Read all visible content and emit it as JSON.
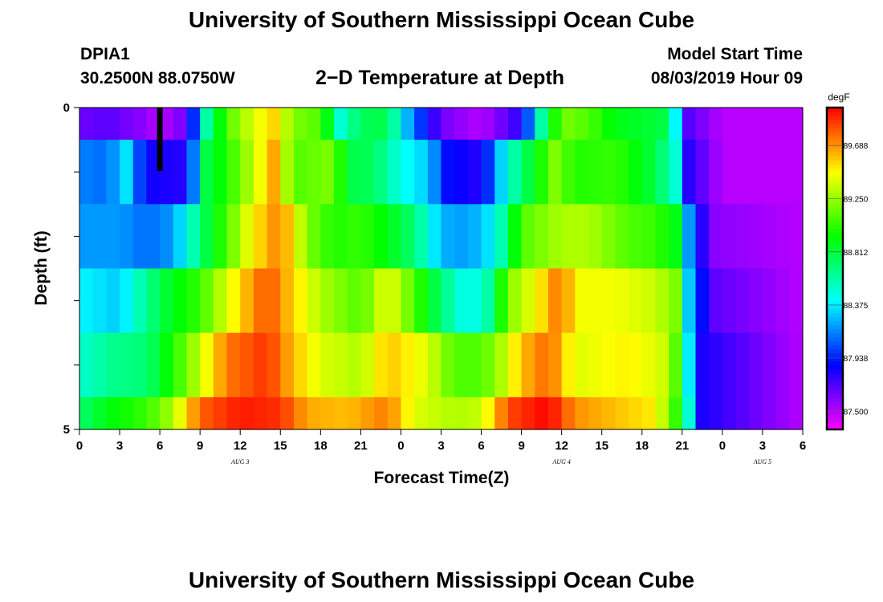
{
  "header": {
    "title": "University of Southern Mississippi Ocean Cube",
    "station_id": "DPIA1",
    "station_coords": "30.2500N 88.0750W",
    "plot_title": "2−D Temperature at Depth",
    "model_start_label": "Model Start Time",
    "model_start_value": "08/03/2019 Hour 09"
  },
  "footer": {
    "title": "University of Southern Mississippi Ocean Cube"
  },
  "chart_data": {
    "type": "heatmap",
    "xlabel": "Forecast Time(Z)",
    "ylabel": "Depth (ft)",
    "x_tick_labels": [
      "0",
      "3",
      "6",
      "9",
      "12",
      "15",
      "18",
      "21",
      "0",
      "3",
      "6",
      "9",
      "12",
      "15",
      "18",
      "21",
      "0",
      "3",
      "6"
    ],
    "x_date_labels": [
      {
        "label": "AUG 3",
        "tick_index": 4
      },
      {
        "label": "AUG 4",
        "tick_index": 12
      },
      {
        "label": "AUG 5",
        "tick_index": 17
      }
    ],
    "y_tick_labels": [
      "0",
      "5"
    ],
    "ylim": [
      0,
      5
    ],
    "y_minor_ticks": [
      0,
      1,
      2,
      3,
      4,
      5
    ],
    "colorbar": {
      "unit": "degF",
      "min": 87.35,
      "max": 90.0,
      "tick_values": [
        87.5,
        87.938,
        88.375,
        88.812,
        89.25,
        89.688
      ],
      "tick_labels": [
        "87.500",
        "87.938",
        "88.375",
        "88.812",
        "89.250",
        "89.688"
      ]
    },
    "time_marker_hour": 6,
    "depth_layers": [
      {
        "depth_range": [
          0,
          0.5
        ],
        "keyframes": [
          [
            0,
            87.65
          ],
          [
            2,
            87.7
          ],
          [
            4.5,
            87.6
          ],
          [
            6,
            87.5
          ],
          [
            8,
            87.65
          ],
          [
            9.5,
            88.6
          ],
          [
            11,
            89.1
          ],
          [
            13,
            89.4
          ],
          [
            14.5,
            89.55
          ],
          [
            16,
            89.2
          ],
          [
            18,
            89.1
          ],
          [
            19.5,
            88.5
          ],
          [
            21,
            88.75
          ],
          [
            23,
            88.8
          ],
          [
            24,
            88.4
          ],
          [
            25,
            88.1
          ],
          [
            27,
            87.65
          ],
          [
            30,
            87.5
          ],
          [
            33,
            87.8
          ],
          [
            34.5,
            88.6
          ],
          [
            36,
            89.2
          ],
          [
            38,
            89.1
          ],
          [
            40,
            88.9
          ],
          [
            42,
            88.85
          ],
          [
            43.5,
            88.8
          ],
          [
            44.5,
            88.4
          ],
          [
            45.5,
            87.7
          ],
          [
            48,
            87.5
          ],
          [
            54,
            87.5
          ]
        ]
      },
      {
        "depth_range": [
          0.5,
          1.5
        ],
        "keyframes": [
          [
            0,
            88.15
          ],
          [
            2,
            88.1
          ],
          [
            3.5,
            88.35
          ],
          [
            5,
            87.85
          ],
          [
            8,
            87.8
          ],
          [
            9.5,
            88.8
          ],
          [
            11,
            89.0
          ],
          [
            13,
            89.35
          ],
          [
            14.5,
            89.65
          ],
          [
            16,
            89.1
          ],
          [
            19,
            89.2
          ],
          [
            20,
            88.8
          ],
          [
            22,
            88.75
          ],
          [
            24,
            88.45
          ],
          [
            26,
            88.3
          ],
          [
            27.5,
            87.9
          ],
          [
            30,
            87.8
          ],
          [
            32,
            88.5
          ],
          [
            34,
            88.9
          ],
          [
            35.5,
            89.2
          ],
          [
            37,
            89.0
          ],
          [
            40,
            89.05
          ],
          [
            43,
            88.8
          ],
          [
            44.5,
            88.5
          ],
          [
            45.5,
            87.8
          ],
          [
            48,
            87.5
          ],
          [
            54,
            87.5
          ]
        ]
      },
      {
        "depth_range": [
          1.5,
          2.5
        ],
        "keyframes": [
          [
            0,
            88.2
          ],
          [
            3,
            88.2
          ],
          [
            5,
            88.1
          ],
          [
            7,
            88.2
          ],
          [
            9,
            88.7
          ],
          [
            11,
            89.1
          ],
          [
            13,
            89.5
          ],
          [
            15,
            89.75
          ],
          [
            17,
            89.2
          ],
          [
            19,
            89.0
          ],
          [
            21,
            89.05
          ],
          [
            23,
            88.9
          ],
          [
            25,
            88.7
          ],
          [
            27,
            88.25
          ],
          [
            29,
            88.2
          ],
          [
            31,
            88.4
          ],
          [
            33,
            89.1
          ],
          [
            36,
            89.3
          ],
          [
            38,
            89.3
          ],
          [
            41,
            89.1
          ],
          [
            43,
            89.05
          ],
          [
            44.5,
            88.9
          ],
          [
            45.5,
            88.2
          ],
          [
            47,
            87.6
          ],
          [
            54,
            87.5
          ]
        ]
      },
      {
        "depth_range": [
          2.5,
          3.5
        ],
        "keyframes": [
          [
            0,
            88.4
          ],
          [
            3,
            88.3
          ],
          [
            5,
            88.65
          ],
          [
            7,
            88.9
          ],
          [
            9,
            89.05
          ],
          [
            11,
            89.4
          ],
          [
            14,
            89.85
          ],
          [
            16,
            89.55
          ],
          [
            18,
            89.3
          ],
          [
            21,
            89.1
          ],
          [
            23,
            89.45
          ],
          [
            25,
            89.1
          ],
          [
            27,
            88.7
          ],
          [
            29,
            88.4
          ],
          [
            30.5,
            88.6
          ],
          [
            32,
            89.2
          ],
          [
            34,
            89.45
          ],
          [
            36,
            89.8
          ],
          [
            37,
            89.45
          ],
          [
            40,
            89.45
          ],
          [
            43,
            89.35
          ],
          [
            44.5,
            89.2
          ],
          [
            45.5,
            88.3
          ],
          [
            47,
            87.7
          ],
          [
            54,
            87.5
          ]
        ]
      },
      {
        "depth_range": [
          3.5,
          4.5
        ],
        "keyframes": [
          [
            0,
            88.5
          ],
          [
            2.5,
            88.65
          ],
          [
            5,
            88.7
          ],
          [
            7,
            89.0
          ],
          [
            9,
            89.35
          ],
          [
            11,
            89.75
          ],
          [
            14,
            89.9
          ],
          [
            16,
            89.6
          ],
          [
            18,
            89.4
          ],
          [
            21,
            89.3
          ],
          [
            23,
            89.6
          ],
          [
            26,
            89.4
          ],
          [
            28,
            89.1
          ],
          [
            30,
            89.1
          ],
          [
            31.5,
            89.3
          ],
          [
            33,
            89.6
          ],
          [
            35,
            89.8
          ],
          [
            37,
            89.4
          ],
          [
            41,
            89.5
          ],
          [
            44,
            89.35
          ],
          [
            45,
            88.9
          ],
          [
            46,
            87.85
          ],
          [
            54,
            87.5
          ]
        ]
      },
      {
        "depth_range": [
          4.5,
          5
        ],
        "keyframes": [
          [
            0,
            88.7
          ],
          [
            2,
            88.9
          ],
          [
            5,
            89.05
          ],
          [
            7,
            89.3
          ],
          [
            9,
            89.8
          ],
          [
            12,
            89.95
          ],
          [
            15,
            89.9
          ],
          [
            17,
            89.65
          ],
          [
            20,
            89.6
          ],
          [
            23,
            89.75
          ],
          [
            25,
            89.4
          ],
          [
            28,
            89.3
          ],
          [
            30,
            89.35
          ],
          [
            32,
            89.85
          ],
          [
            35,
            90.0
          ],
          [
            37,
            89.7
          ],
          [
            40,
            89.6
          ],
          [
            43,
            89.5
          ],
          [
            44.5,
            89.05
          ],
          [
            45.5,
            88.5
          ],
          [
            46,
            87.85
          ],
          [
            54,
            87.5
          ]
        ]
      }
    ]
  }
}
